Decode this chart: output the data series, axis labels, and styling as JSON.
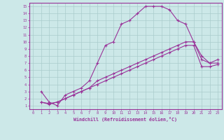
{
  "xlabel": "Windchill (Refroidissement éolien,°C)",
  "bg_color": "#cce8e8",
  "grid_color": "#aacccc",
  "line_color": "#993399",
  "xlim": [
    -0.5,
    23.5
  ],
  "ylim": [
    0.5,
    15.5
  ],
  "xticks": [
    0,
    1,
    2,
    3,
    4,
    5,
    6,
    7,
    8,
    9,
    10,
    11,
    12,
    13,
    14,
    15,
    16,
    17,
    18,
    19,
    20,
    21,
    22,
    23
  ],
  "yticks": [
    1,
    2,
    3,
    4,
    5,
    6,
    7,
    8,
    9,
    10,
    11,
    12,
    13,
    14,
    15
  ],
  "line1_x": [
    1,
    2,
    3,
    4,
    5,
    6,
    7,
    8,
    9,
    10,
    11,
    12,
    13,
    14,
    15,
    16,
    17,
    18,
    19,
    20,
    21,
    22,
    23
  ],
  "line1_y": [
    3.0,
    1.5,
    1.0,
    2.5,
    3.0,
    3.5,
    4.5,
    7.0,
    9.5,
    10.0,
    12.5,
    13.0,
    14.0,
    15.0,
    15.0,
    15.0,
    14.5,
    13.0,
    12.5,
    10.0,
    8.0,
    7.0,
    7.0
  ],
  "line2_x": [
    1,
    2,
    3,
    4,
    5,
    6,
    7,
    8,
    9,
    10,
    11,
    12,
    13,
    14,
    15,
    16,
    17,
    18,
    19,
    20,
    21,
    22,
    23
  ],
  "line2_y": [
    1.5,
    1.2,
    1.5,
    2.0,
    2.5,
    3.0,
    3.5,
    4.5,
    5.0,
    5.5,
    6.0,
    6.5,
    7.0,
    7.5,
    8.0,
    8.5,
    9.0,
    9.5,
    10.0,
    10.0,
    7.5,
    7.0,
    7.5
  ],
  "line3_x": [
    1,
    2,
    3,
    4,
    5,
    6,
    7,
    8,
    9,
    10,
    11,
    12,
    13,
    14,
    15,
    16,
    17,
    18,
    19,
    20,
    21,
    22,
    23
  ],
  "line3_y": [
    1.5,
    1.3,
    1.5,
    2.0,
    2.5,
    3.0,
    3.5,
    4.0,
    4.5,
    5.0,
    5.5,
    6.0,
    6.5,
    7.0,
    7.5,
    8.0,
    8.5,
    9.0,
    9.5,
    9.5,
    6.5,
    6.5,
    6.8
  ]
}
